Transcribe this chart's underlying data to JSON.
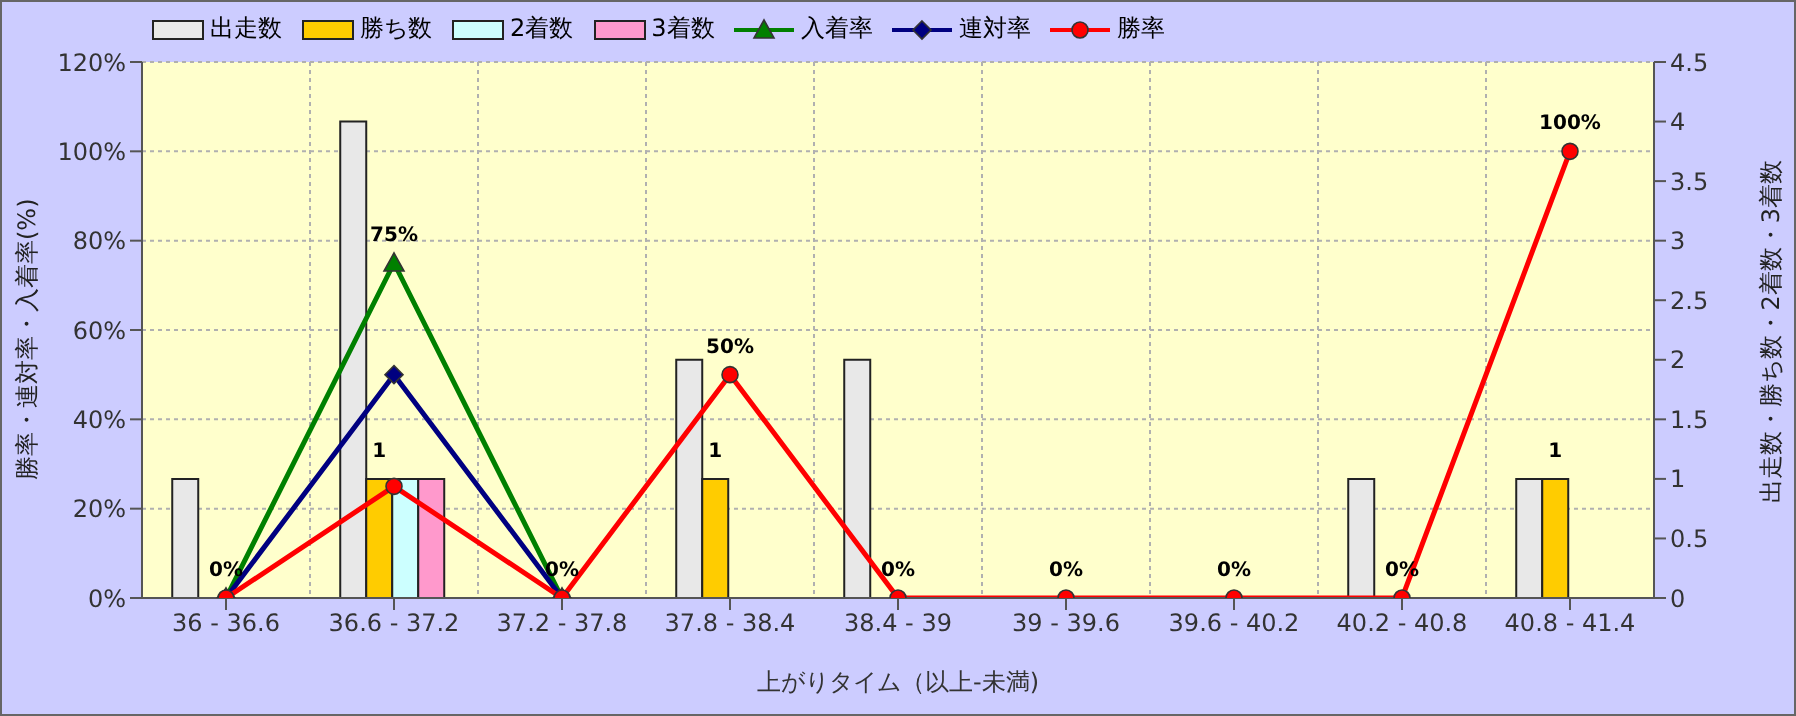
{
  "chart_data": {
    "type": "bar",
    "xlabel": "上がりタイム（以上-未満)",
    "ylabel": "勝率・連対率・入着率(%)",
    "y2label": "出走数・勝ち数・2着数・3着数",
    "categories": [
      "36 - 36.6",
      "36.6 - 37.2",
      "37.2 - 37.8",
      "37.8 - 38.4",
      "38.4 - 39",
      "39 - 39.6",
      "39.6 - 40.2",
      "40.2 - 40.8",
      "40.8 - 41.4"
    ],
    "series": [
      {
        "name": "出走数",
        "axis": "y2",
        "color": "#e8e8e8",
        "values": [
          1,
          4,
          0,
          2,
          2,
          0,
          0,
          1,
          1
        ]
      },
      {
        "name": "勝ち数",
        "axis": "y2",
        "color": "#ffcc00",
        "values": [
          0,
          1,
          0,
          1,
          0,
          0,
          0,
          0,
          1
        ],
        "value_labels": [
          null,
          "1",
          null,
          "1",
          null,
          null,
          null,
          null,
          "1"
        ]
      },
      {
        "name": "2着数",
        "axis": "y2",
        "color": "#ccffff",
        "values": [
          0,
          1,
          0,
          0,
          0,
          0,
          0,
          0,
          0
        ]
      },
      {
        "name": "3着数",
        "axis": "y2",
        "color": "#ff99cc",
        "values": [
          0,
          1,
          0,
          0,
          0,
          0,
          0,
          0,
          0
        ]
      },
      {
        "name": "入着率",
        "type": "line",
        "marker": "triangle",
        "color": "#008000",
        "values": [
          0,
          75,
          0,
          null,
          null,
          null,
          null,
          null,
          null
        ],
        "value_labels": [
          "0%",
          "75%",
          "0%",
          null,
          null,
          null,
          null,
          null,
          null
        ]
      },
      {
        "name": "連対率",
        "type": "line",
        "marker": "diamond",
        "color": "#000080",
        "values": [
          0,
          50,
          0,
          null,
          null,
          null,
          null,
          null,
          null
        ]
      },
      {
        "name": "勝率",
        "type": "line",
        "marker": "circle",
        "color": "#ff0000",
        "values": [
          0,
          25,
          0,
          50,
          0,
          0,
          0,
          0,
          100
        ],
        "value_labels": [
          null,
          null,
          null,
          "50%",
          "0%",
          "0%",
          "0%",
          "0%",
          "100%"
        ]
      }
    ],
    "ylim": [
      0,
      120
    ],
    "yticks": [
      {
        "value": 0,
        "label": "0%"
      },
      {
        "value": 20,
        "label": "20%"
      },
      {
        "value": 40,
        "label": "40%"
      },
      {
        "value": 60,
        "label": "60%"
      },
      {
        "value": 80,
        "label": "80%"
      },
      {
        "value": 100,
        "label": "100%"
      },
      {
        "value": 120,
        "label": "120%"
      }
    ],
    "y2lim": [
      0,
      4.5
    ],
    "y2ticks": [
      0,
      0.5,
      1,
      1.5,
      2,
      2.5,
      3,
      3.5,
      4,
      4.5
    ],
    "grid": true,
    "legend": "top left"
  }
}
